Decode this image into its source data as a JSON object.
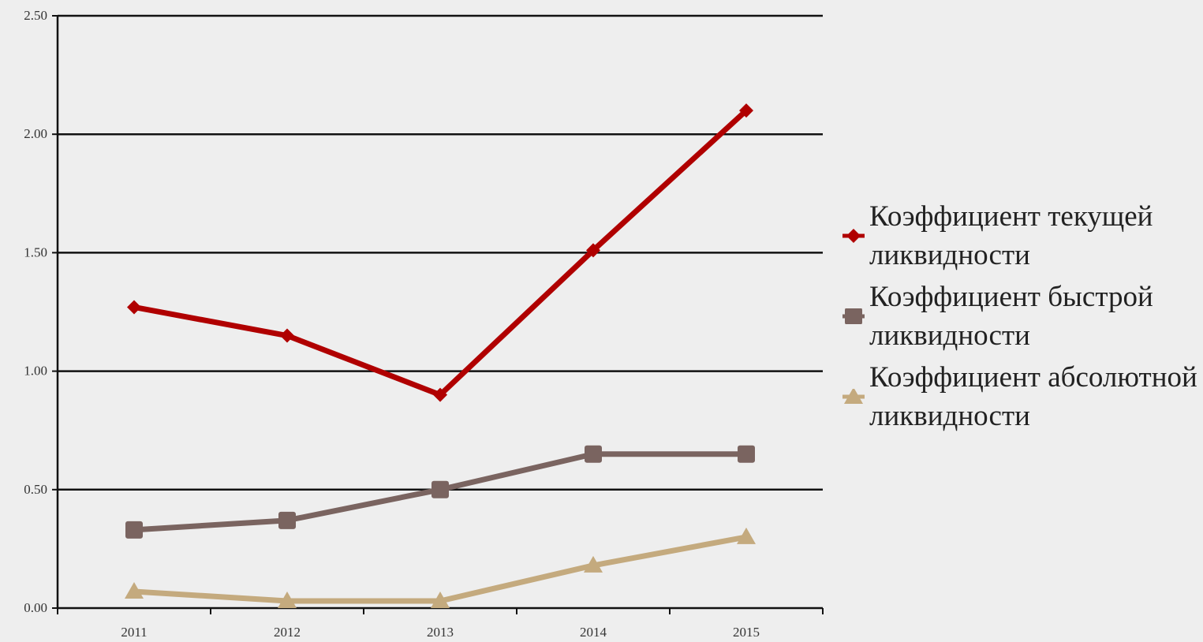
{
  "chart_data": {
    "type": "line",
    "categories": [
      "2011",
      "2012",
      "2013",
      "2014",
      "2015"
    ],
    "y_ticks": [
      "0.00",
      "0.50",
      "1.00",
      "1.50",
      "2.00",
      "2.50"
    ],
    "ylim": [
      0,
      2.5
    ],
    "grid": true,
    "legend_position": "right",
    "series": [
      {
        "name": "Коэффициент текущей ликвидности",
        "values": [
          1.27,
          1.15,
          0.9,
          1.51,
          2.1
        ],
        "color": "#b00000",
        "marker": "diamond"
      },
      {
        "name": "Коэффициент быстрой ликвидности",
        "values": [
          0.33,
          0.37,
          0.5,
          0.65,
          0.65
        ],
        "color": "#7a6460",
        "marker": "square"
      },
      {
        "name": "Коэффициент абсолютной ликвидности",
        "values": [
          0.07,
          0.03,
          0.03,
          0.18,
          0.3
        ],
        "color": "#c4aa7e",
        "marker": "triangle"
      }
    ]
  }
}
